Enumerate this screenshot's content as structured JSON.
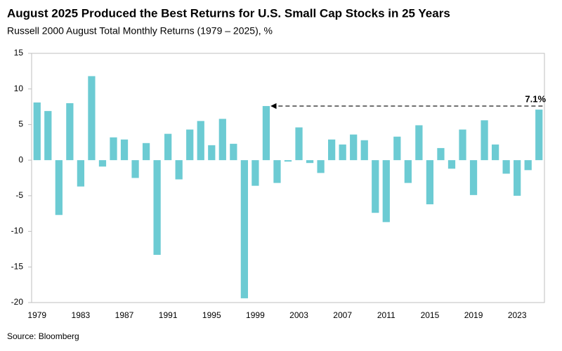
{
  "chart_data": {
    "type": "bar",
    "title": "August 2025 Produced the Best Returns for U.S. Small Cap Stocks in 25 Years",
    "subtitle": "Russell 2000 August Total Monthly Returns (1979 – 2025), %",
    "source": "Source: Bloomberg",
    "categories": [
      "1979",
      null,
      null,
      null,
      "1983",
      null,
      null,
      null,
      "1987",
      null,
      null,
      null,
      "1991",
      null,
      null,
      null,
      "1995",
      null,
      null,
      null,
      "1999",
      null,
      null,
      null,
      "2003",
      null,
      null,
      null,
      "2007",
      null,
      null,
      null,
      "2011",
      null,
      null,
      null,
      "2015",
      null,
      null,
      null,
      "2019",
      null,
      null,
      null,
      "2023",
      null,
      null
    ],
    "values": [
      8.1,
      6.9,
      -7.7,
      8.0,
      -3.7,
      11.8,
      -0.9,
      3.2,
      2.9,
      -2.5,
      2.4,
      -13.3,
      3.7,
      -2.7,
      4.3,
      5.5,
      2.1,
      5.8,
      2.3,
      -19.4,
      -3.6,
      7.6,
      -3.2,
      -0.2,
      4.6,
      -0.4,
      -1.8,
      2.9,
      2.2,
      3.6,
      2.8,
      -7.4,
      -8.7,
      3.3,
      -3.2,
      4.9,
      -6.2,
      1.7,
      -1.2,
      4.3,
      -4.9,
      5.6,
      2.2,
      -1.9,
      -5.0,
      -1.4,
      7.1
    ],
    "value_labels": [
      null,
      null,
      null,
      null,
      null,
      null,
      null,
      null,
      null,
      null,
      null,
      null,
      null,
      null,
      null,
      null,
      null,
      null,
      null,
      null,
      null,
      null,
      null,
      null,
      null,
      null,
      null,
      null,
      null,
      null,
      null,
      null,
      null,
      null,
      null,
      null,
      null,
      null,
      null,
      null,
      null,
      null,
      null,
      null,
      null,
      null,
      "7.1%"
    ],
    "color": "#6ccbd3",
    "ylim": [
      -20,
      15
    ],
    "yticks": [
      -20,
      -15,
      -10,
      -5,
      0,
      5,
      10,
      15
    ],
    "grid": false
  }
}
